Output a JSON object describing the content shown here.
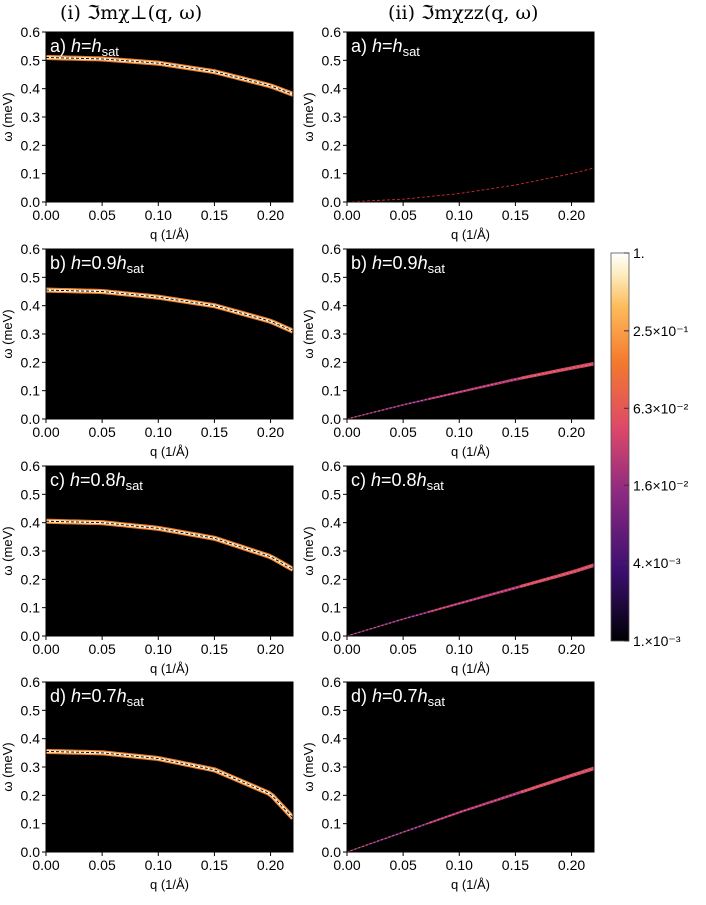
{
  "column_titles": [
    "(i) ℑmχ⊥(q, ω)",
    "(ii) ℑmχzz(q, ω)"
  ],
  "colorbar": {
    "tick_labels": [
      "1.",
      "2.5×10⁻¹",
      "6.3×10⁻²",
      "1.6×10⁻²",
      "4.×10⁻³",
      "1.×10⁻³"
    ],
    "tick_values": [
      1.0,
      0.25,
      0.063,
      0.016,
      0.004,
      0.001
    ],
    "scale": "log",
    "colormap": [
      "#000004",
      "#3b0f70",
      "#8c2981",
      "#de4968",
      "#fe9f6d",
      "#fcfdbf",
      "#ffffff"
    ]
  },
  "chart_data": [
    {
      "type": "heatmap",
      "panel": "i",
      "row": 0,
      "label_prefix": "a)",
      "h_text": "h",
      "mult_text": "",
      "eq_text": "=",
      "sub_text": "sat",
      "xlabel": "q (1/Å)",
      "ylabel": "ω (meV)",
      "xlim": [
        0,
        0.22
      ],
      "ylim": [
        0,
        0.6
      ],
      "xticks": [
        "0.00",
        "0.05",
        "0.10",
        "0.15",
        "0.20"
      ],
      "yticks": [
        "0.0",
        "0.1",
        "0.2",
        "0.3",
        "0.4",
        "0.5",
        "0.6"
      ],
      "dispersion_q": [
        0,
        0.05,
        0.1,
        0.15,
        0.2,
        0.22
      ],
      "dispersion_w": [
        0.51,
        0.505,
        0.49,
        0.46,
        0.41,
        0.38
      ],
      "intensity": "high",
      "band_width": 0.018
    },
    {
      "type": "heatmap",
      "panel": "ii",
      "row": 0,
      "label_prefix": "a)",
      "h_text": "h",
      "mult_text": "",
      "eq_text": "=",
      "sub_text": "sat",
      "xlabel": "q (1/Å)",
      "ylabel": "ω (meV)",
      "xlim": [
        0,
        0.22
      ],
      "ylim": [
        0,
        0.6
      ],
      "xticks": [
        "0.00",
        "0.05",
        "0.10",
        "0.15",
        "0.20"
      ],
      "yticks": [
        "0.0",
        "0.1",
        "0.2",
        "0.3",
        "0.4",
        "0.5",
        "0.6"
      ],
      "dispersion_q": [
        0,
        0.05,
        0.1,
        0.15,
        0.2,
        0.22
      ],
      "dispersion_w": [
        0.0,
        0.01,
        0.03,
        0.06,
        0.1,
        0.12
      ],
      "intensity": "none",
      "band_width": 0
    },
    {
      "type": "heatmap",
      "panel": "i",
      "row": 1,
      "label_prefix": "b)",
      "h_text": "h",
      "mult_text": "0.9",
      "eq_text": "=",
      "sub_text": "sat",
      "xlabel": "q (1/Å)",
      "ylabel": "ω (meV)",
      "xlim": [
        0,
        0.22
      ],
      "ylim": [
        0,
        0.6
      ],
      "xticks": [
        "0.00",
        "0.05",
        "0.10",
        "0.15",
        "0.20"
      ],
      "yticks": [
        "0.0",
        "0.1",
        "0.2",
        "0.3",
        "0.4",
        "0.5",
        "0.6"
      ],
      "dispersion_q": [
        0,
        0.05,
        0.1,
        0.15,
        0.2,
        0.22
      ],
      "dispersion_w": [
        0.455,
        0.45,
        0.43,
        0.4,
        0.345,
        0.31
      ],
      "intensity": "high",
      "band_width": 0.018
    },
    {
      "type": "heatmap",
      "panel": "ii",
      "row": 1,
      "label_prefix": "b)",
      "h_text": "h",
      "mult_text": "0.9",
      "eq_text": "=",
      "sub_text": "sat",
      "xlabel": "q (1/Å)",
      "ylabel": "ω (meV)",
      "xlim": [
        0,
        0.22
      ],
      "ylim": [
        0,
        0.6
      ],
      "xticks": [
        "0.00",
        "0.05",
        "0.10",
        "0.15",
        "0.20"
      ],
      "yticks": [
        "0.0",
        "0.1",
        "0.2",
        "0.3",
        "0.4",
        "0.5",
        "0.6"
      ],
      "dispersion_q": [
        0,
        0.05,
        0.1,
        0.15,
        0.2,
        0.22
      ],
      "dispersion_w": [
        0.0,
        0.05,
        0.095,
        0.14,
        0.18,
        0.195
      ],
      "intensity": "low",
      "band_width": 0.012
    },
    {
      "type": "heatmap",
      "panel": "i",
      "row": 2,
      "label_prefix": "c)",
      "h_text": "h",
      "mult_text": "0.8",
      "eq_text": "=",
      "sub_text": "sat",
      "xlabel": "q (1/Å)",
      "ylabel": "ω (meV)",
      "xlim": [
        0,
        0.22
      ],
      "ylim": [
        0,
        0.6
      ],
      "xticks": [
        "0.00",
        "0.05",
        "0.10",
        "0.15",
        "0.20"
      ],
      "yticks": [
        "0.0",
        "0.1",
        "0.2",
        "0.3",
        "0.4",
        "0.5",
        "0.6"
      ],
      "dispersion_q": [
        0,
        0.05,
        0.1,
        0.15,
        0.2,
        0.22
      ],
      "dispersion_w": [
        0.405,
        0.4,
        0.38,
        0.345,
        0.28,
        0.235
      ],
      "intensity": "high",
      "band_width": 0.018
    },
    {
      "type": "heatmap",
      "panel": "ii",
      "row": 2,
      "label_prefix": "c)",
      "h_text": "h",
      "mult_text": "0.8",
      "eq_text": "=",
      "sub_text": "sat",
      "xlabel": "q (1/Å)",
      "ylabel": "ω (meV)",
      "xlim": [
        0,
        0.22
      ],
      "ylim": [
        0,
        0.6
      ],
      "xticks": [
        "0.00",
        "0.05",
        "0.10",
        "0.15",
        "0.20"
      ],
      "yticks": [
        "0.0",
        "0.1",
        "0.2",
        "0.3",
        "0.4",
        "0.5",
        "0.6"
      ],
      "dispersion_q": [
        0,
        0.05,
        0.1,
        0.15,
        0.2,
        0.22
      ],
      "dispersion_w": [
        0.0,
        0.06,
        0.115,
        0.17,
        0.225,
        0.25
      ],
      "intensity": "low",
      "band_width": 0.012
    },
    {
      "type": "heatmap",
      "panel": "i",
      "row": 3,
      "label_prefix": "d)",
      "h_text": "h",
      "mult_text": "0.7",
      "eq_text": "=",
      "sub_text": "sat",
      "xlabel": "q (1/Å)",
      "ylabel": "ω (meV)",
      "xlim": [
        0,
        0.22
      ],
      "ylim": [
        0,
        0.6
      ],
      "xticks": [
        "0.00",
        "0.05",
        "0.10",
        "0.15",
        "0.20"
      ],
      "yticks": [
        "0.0",
        "0.1",
        "0.2",
        "0.3",
        "0.4",
        "0.5",
        "0.6"
      ],
      "dispersion_q": [
        0,
        0.05,
        0.1,
        0.15,
        0.2,
        0.22
      ],
      "dispersion_w": [
        0.355,
        0.35,
        0.33,
        0.29,
        0.205,
        0.12
      ],
      "intensity": "high",
      "band_width": 0.018
    },
    {
      "type": "heatmap",
      "panel": "ii",
      "row": 3,
      "label_prefix": "d)",
      "h_text": "h",
      "mult_text": "0.7",
      "eq_text": "=",
      "sub_text": "sat",
      "xlabel": "q (1/Å)",
      "ylabel": "ω (meV)",
      "xlim": [
        0,
        0.22
      ],
      "ylim": [
        0,
        0.6
      ],
      "xticks": [
        "0.00",
        "0.05",
        "0.10",
        "0.15",
        "0.20"
      ],
      "yticks": [
        "0.0",
        "0.1",
        "0.2",
        "0.3",
        "0.4",
        "0.5",
        "0.6"
      ],
      "dispersion_q": [
        0,
        0.05,
        0.1,
        0.15,
        0.2,
        0.22
      ],
      "dispersion_w": [
        0.0,
        0.07,
        0.14,
        0.205,
        0.27,
        0.295
      ],
      "intensity": "low",
      "band_width": 0.012
    }
  ]
}
